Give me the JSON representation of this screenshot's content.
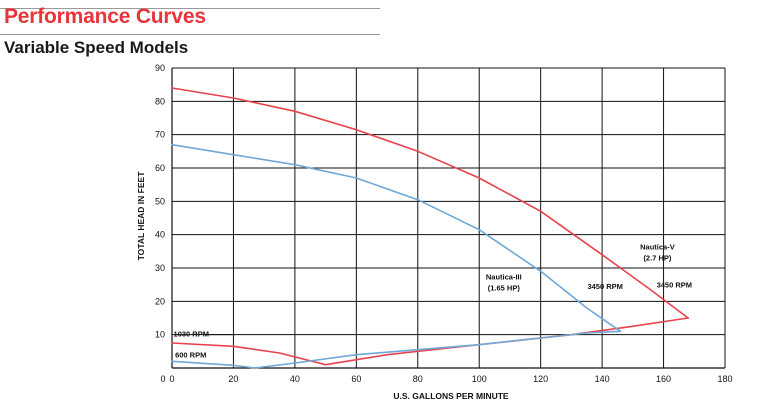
{
  "header": {
    "title": "Performance Curves",
    "subtitle": "Variable Speed Models"
  },
  "colors": {
    "accent": "#e8343a",
    "nautica_v": "#e8434b",
    "nautica_iii": "#6fa8d6",
    "grid": "#111111"
  },
  "chart_data": {
    "type": "line",
    "xlabel": "U.S. GALLONS PER MINUTE",
    "ylabel": "TOTAL HEAD IN FEET",
    "xlim": [
      0,
      180
    ],
    "ylim": [
      0,
      90
    ],
    "xticks": [
      0,
      20,
      40,
      60,
      80,
      100,
      120,
      140,
      160,
      180
    ],
    "yticks": [
      10,
      20,
      30,
      40,
      50,
      60,
      70,
      80,
      90
    ],
    "grid": true,
    "series": [
      {
        "key": "nautica_v",
        "color": "#e8434b",
        "x": [
          0,
          20,
          40,
          60,
          80,
          100,
          120,
          140,
          155,
          168
        ],
        "y": [
          84,
          81,
          77,
          71.5,
          65,
          57,
          47,
          34,
          24,
          15
        ]
      },
      {
        "key": "nautica_v_low",
        "color": "#e8434b",
        "x": [
          0,
          20,
          35,
          50,
          70,
          90,
          110,
          130,
          150,
          168
        ],
        "y": [
          7.5,
          6.5,
          4.5,
          1,
          4,
          6,
          8,
          10,
          12.5,
          15
        ]
      },
      {
        "key": "nautica_iii",
        "color": "#6fa8d6",
        "x": [
          0,
          20,
          40,
          60,
          80,
          100,
          120,
          135,
          146
        ],
        "y": [
          67,
          64,
          61,
          57,
          50.5,
          41.5,
          29,
          18,
          11
        ]
      },
      {
        "key": "nautica_iii_low",
        "color": "#6fa8d6",
        "x": [
          0,
          20,
          27,
          40,
          60,
          80,
          100,
          120,
          135,
          146
        ],
        "y": [
          2,
          0.8,
          0,
          1.5,
          4,
          5.5,
          7,
          9,
          10.5,
          11
        ]
      }
    ],
    "annotations": [
      {
        "key": "nautica_v_name",
        "text": "Nautica-V",
        "x": 158,
        "y": 35.5,
        "anchor": "middle"
      },
      {
        "key": "nautica_v_hp",
        "text": "(2.7 HP)",
        "x": 158,
        "y": 32.3,
        "anchor": "middle"
      },
      {
        "key": "nautica_iii_name",
        "text": "Nautica-III",
        "x": 108,
        "y": 26.5,
        "anchor": "middle"
      },
      {
        "key": "nautica_iii_hp",
        "text": "(1.65 HP)",
        "x": 108,
        "y": 23.3,
        "anchor": "middle"
      },
      {
        "key": "rpm_3450_a",
        "text": "3450 RPM",
        "x": 141,
        "y": 23.7,
        "anchor": "middle"
      },
      {
        "key": "rpm_3450_b",
        "text": "3450 RPM",
        "x": 163.5,
        "y": 24.2,
        "anchor": "middle"
      },
      {
        "key": "rpm_1030",
        "text": "1030 RPM",
        "x": 0.5,
        "y": 9.5,
        "anchor": "start"
      },
      {
        "key": "rpm_600",
        "text": "600 RPM",
        "x": 1,
        "y": 3.1,
        "anchor": "start"
      }
    ]
  }
}
